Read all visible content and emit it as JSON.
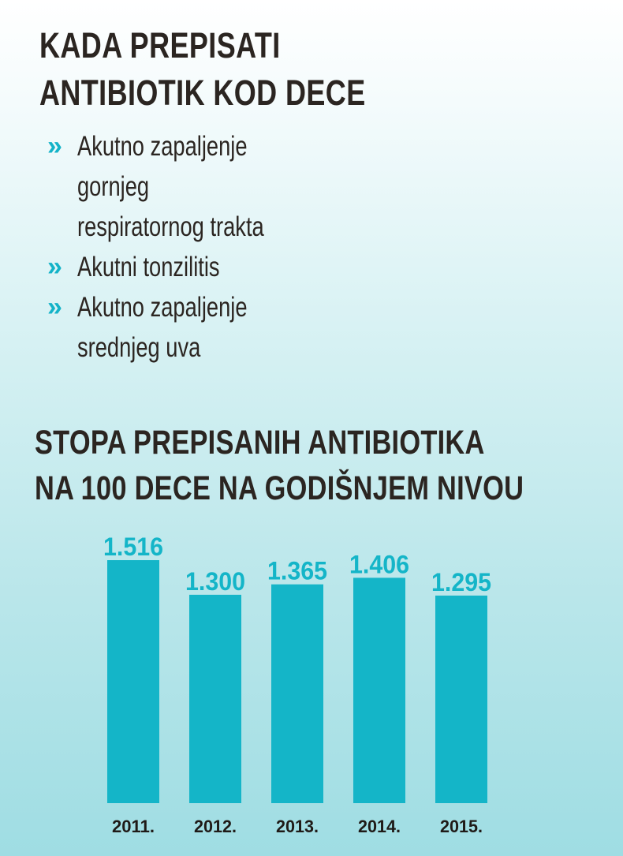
{
  "header": {
    "title_line1": "KADA PREPISATI",
    "title_line2": "ANTIBIOTIK  KOD DECE"
  },
  "list": {
    "bullet_icon": "double-chevron-right-icon",
    "items": [
      "Akutno zapaljenje\ngornjeg\nrespiratornog trakta",
      "Akutni tonzilitis",
      "Akutno zapaljenje\nsrednjeg uva"
    ]
  },
  "chart_data": {
    "type": "bar",
    "title_line1": "STOPA PREPISANIH ANTIBIOTIKA",
    "title_line2": "NA 100 DECE NA GODIŠNJEM NIVOU",
    "categories": [
      "2011.",
      "2012.",
      "2013.",
      "2014.",
      "2015."
    ],
    "values": [
      1516,
      1300,
      1365,
      1406,
      1295
    ],
    "value_labels": [
      "1.516",
      "1.300",
      "1.365",
      "1.406",
      "1.295"
    ],
    "colors": {
      "bar": "#14b5c8",
      "value_label": "#14b5c8",
      "text": "#2b2521"
    },
    "grid": false,
    "legend": "none"
  }
}
